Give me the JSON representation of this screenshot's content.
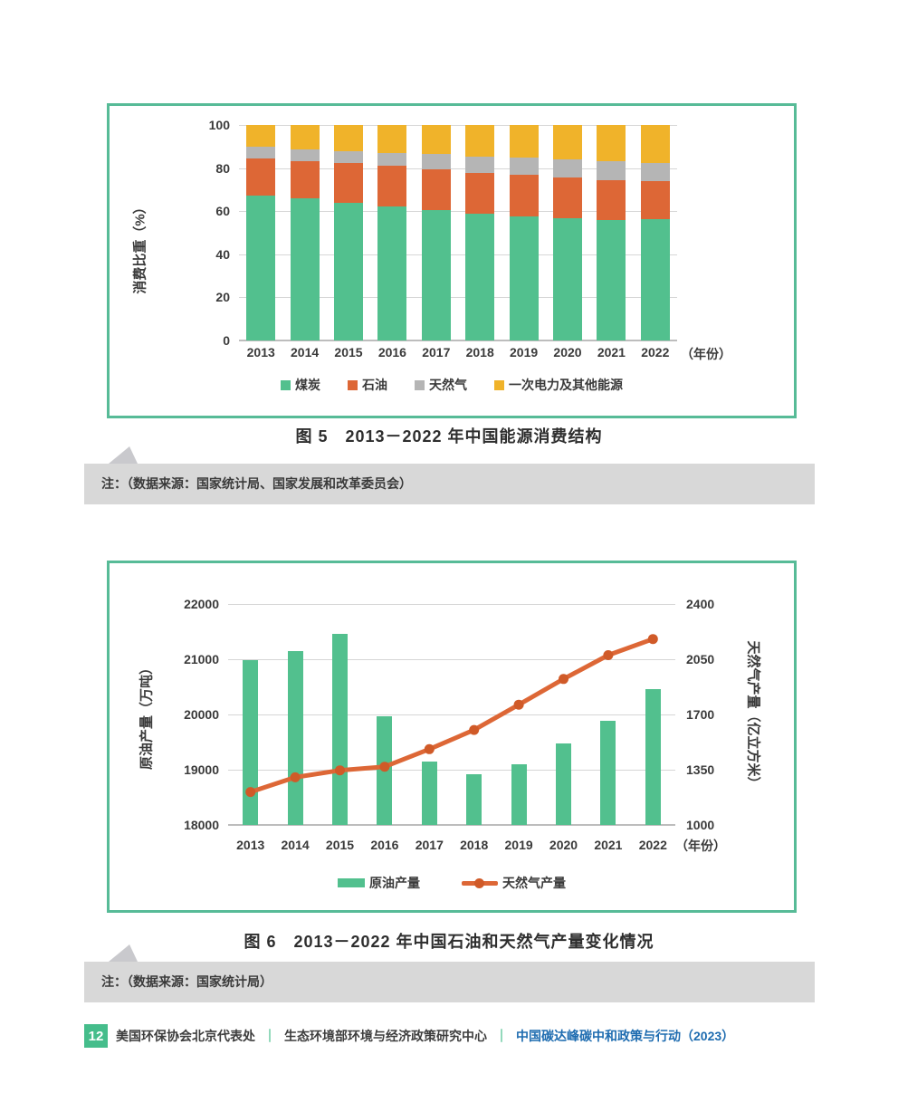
{
  "figure5": {
    "caption": "图 5　2013－2022 年中国能源消费结构",
    "note": "注：（数据来源：国家统计局、国家发展和改革委员会）"
  },
  "figure6": {
    "caption": "图 6　2013－2022 年中国石油和天然气产量变化情况",
    "note": "注：（数据来源：国家统计局）"
  },
  "footer": {
    "page_number": "12",
    "org_primary": "美国环保协会北京代表处",
    "org_secondary": "生态环境部环境与经济政策研究中心",
    "report_title": "中国碳达峰碳中和政策与行动（2023）",
    "separator": "｜"
  },
  "colors": {
    "chart_border_green": "#57bb97",
    "coal_green": "#52c08e",
    "oil_orange": "#dd6736",
    "gas_gray": "#b5b5b5",
    "electricity_yellow": "#f0b32a",
    "note_bg_gray": "#d8d8d8",
    "footer_green": "#45bd8b",
    "footer_blue": "#1e6cb0"
  },
  "chart_data": [
    {
      "type": "bar",
      "stacked": true,
      "title": "图 5　2013－2022 年中国能源消费结构",
      "categories": [
        "2013",
        "2014",
        "2015",
        "2016",
        "2017",
        "2018",
        "2019",
        "2020",
        "2021",
        "2022"
      ],
      "series": [
        {
          "name": "煤炭",
          "color": "#52c08e",
          "values": [
            67.4,
            65.8,
            63.8,
            62.2,
            60.6,
            59.0,
            57.7,
            56.9,
            56.0,
            56.2
          ]
        },
        {
          "name": "石油",
          "color": "#dd6736",
          "values": [
            17.1,
            17.3,
            18.4,
            18.7,
            18.9,
            18.9,
            19.0,
            18.8,
            18.5,
            17.9
          ]
        },
        {
          "name": "天然气",
          "color": "#b5b5b5",
          "values": [
            5.3,
            5.6,
            5.8,
            6.1,
            6.9,
            7.6,
            8.0,
            8.4,
            8.9,
            8.4
          ]
        },
        {
          "name": "一次电力及其他能源",
          "color": "#f0b32a",
          "values": [
            10.2,
            11.3,
            12.0,
            13.0,
            13.6,
            14.5,
            15.3,
            15.9,
            16.6,
            17.5
          ]
        }
      ],
      "ylabel": "消费比重（%）",
      "xlabel": "（年份）",
      "ylim": [
        0,
        100
      ],
      "yticks": [
        0,
        20,
        40,
        60,
        80,
        100
      ],
      "grid": true,
      "legend_position": "bottom"
    },
    {
      "type": "combo",
      "title": "图 6　2013－2022 年中国石油和天然气产量变化情况",
      "categories": [
        "2013",
        "2014",
        "2015",
        "2016",
        "2017",
        "2018",
        "2019",
        "2020",
        "2021",
        "2022"
      ],
      "bar_series": {
        "name": "原油产量",
        "color": "#52c08e",
        "axis": "left",
        "values": [
          20992,
          21143,
          21456,
          19969,
          19151,
          18911,
          19101,
          19477,
          19888,
          20467
        ]
      },
      "line_series": {
        "name": "天然气产量",
        "color": "#dd6736",
        "marker_color": "#d05a28",
        "axis": "right",
        "values": [
          1209,
          1302,
          1346,
          1369,
          1480,
          1602,
          1762,
          1925,
          2076,
          2178
        ]
      },
      "left_axis": {
        "label": "原油产量（万吨）",
        "lim": [
          18000,
          22000
        ],
        "ticks": [
          18000,
          19000,
          20000,
          21000,
          22000
        ]
      },
      "right_axis": {
        "label": "天然气产量（亿立方米）",
        "lim": [
          1000,
          2400
        ],
        "ticks": [
          1000,
          1350,
          1700,
          2050,
          2400
        ]
      },
      "xlabel": "（年份）",
      "grid": true,
      "legend_position": "bottom"
    }
  ]
}
